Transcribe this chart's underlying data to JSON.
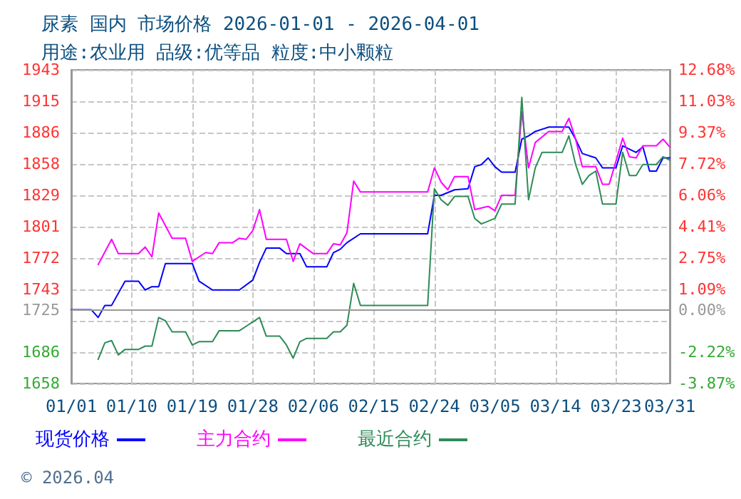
{
  "chart_data": {
    "type": "line",
    "title": "尿素 国内 市场价格 2026-01-01 - 2026-04-01",
    "subtitle": "用途:农业用 品级:优等品 粒度:中小颗粒",
    "annotations": [
      "© 2026.04"
    ],
    "xlim": [
      "2026-01-01",
      "2026-03-31"
    ],
    "xticks": [
      {
        "value": "2026-01-01",
        "label": "01/01"
      },
      {
        "value": "2026-01-10",
        "label": "01/10"
      },
      {
        "value": "2026-01-19",
        "label": "01/19"
      },
      {
        "value": "2026-01-28",
        "label": "01/28"
      },
      {
        "value": "2026-02-06",
        "label": "02/06"
      },
      {
        "value": "2026-02-15",
        "label": "02/15"
      },
      {
        "value": "2026-02-24",
        "label": "02/24"
      },
      {
        "value": "2026-03-05",
        "label": "03/05"
      },
      {
        "value": "2026-03-14",
        "label": "03/14"
      },
      {
        "value": "2026-03-23",
        "label": "03/23"
      },
      {
        "value": "2026-03-31",
        "label": "03/31"
      }
    ],
    "ylim": [
      1658,
      1943
    ],
    "yticks": [
      1658,
      {
        "value": 1686.5,
        "label": "1686"
      },
      {
        "value": 1715,
        "label": null
      },
      {
        "value": 1743.5,
        "label": "1743"
      },
      1772,
      {
        "value": 1800.5,
        "label": "1801"
      },
      1829,
      {
        "value": 1857.5,
        "label": "1858"
      },
      1886,
      {
        "value": 1914.5,
        "label": "1915"
      },
      1943
    ],
    "y2lim": [
      -3.87,
      12.68
    ],
    "y2ticks": [
      {
        "value": -3.87,
        "label": "-3.87%"
      },
      {
        "value": -2.22,
        "label": "-2.22%"
      },
      {
        "value": 0,
        "label": "0.00%"
      },
      {
        "value": 1.09,
        "label": "1.09%"
      },
      {
        "value": 2.75,
        "label": "2.75%"
      },
      {
        "value": 4.41,
        "label": "4.41%"
      },
      {
        "value": 6.06,
        "label": "6.06%"
      },
      {
        "value": 7.72,
        "label": "7.72%"
      },
      {
        "value": 9.37,
        "label": "9.37%"
      },
      {
        "value": 11.03,
        "label": "11.03%"
      },
      {
        "value": 12.68,
        "label": "12.68%"
      }
    ],
    "ref_lines": [
      {
        "axis": "y",
        "value": 1725,
        "label": "1725",
        "color": "#999999"
      }
    ],
    "grid": true,
    "legend": "bottom left",
    "marker": "none",
    "line_style": "solid",
    "series": [
      {
        "name": "现货价格",
        "color": "#0000ff",
        "x": [
          "2026-01-01",
          "2026-01-04",
          "2026-01-05",
          "2026-01-06",
          "2026-01-07",
          "2026-01-09",
          "2026-01-11",
          "2026-01-12",
          "2026-01-13",
          "2026-01-14",
          "2026-01-15",
          "2026-01-19",
          "2026-01-20",
          "2026-01-22",
          "2026-01-26",
          "2026-01-28",
          "2026-01-29",
          "2026-01-30",
          "2026-02-01",
          "2026-02-02",
          "2026-02-04",
          "2026-02-05",
          "2026-02-08",
          "2026-02-09",
          "2026-02-10",
          "2026-02-11",
          "2026-02-13",
          "2026-02-23",
          "2026-02-24",
          "2026-02-25",
          "2026-02-27",
          "2026-03-01",
          "2026-03-02",
          "2026-03-03",
          "2026-03-04",
          "2026-03-05",
          "2026-03-06",
          "2026-03-08",
          "2026-03-09",
          "2026-03-10",
          "2026-03-11",
          "2026-03-13",
          "2026-03-16",
          "2026-03-17",
          "2026-03-18",
          "2026-03-20",
          "2026-03-21",
          "2026-03-23",
          "2026-03-24",
          "2026-03-26",
          "2026-03-27",
          "2026-03-28",
          "2026-03-29",
          "2026-03-30",
          "2026-03-31"
        ],
        "values": [
          1725,
          1725,
          1718,
          1729,
          1729,
          1751,
          1751,
          1743,
          1746,
          1746,
          1767,
          1767,
          1751,
          1743,
          1743,
          1752,
          1768,
          1781,
          1781,
          1776,
          1776,
          1764,
          1764,
          1777,
          1780,
          1786,
          1794,
          1794,
          1829,
          1829,
          1834,
          1835,
          1855,
          1857,
          1863,
          1855,
          1850,
          1850,
          1880,
          1883,
          1887,
          1891,
          1891,
          1880,
          1867,
          1863,
          1854,
          1854,
          1874,
          1868,
          1873,
          1851,
          1851,
          1863,
          1863
        ]
      },
      {
        "name": "主力合约",
        "color": "#ff00ff",
        "x": [
          "2026-01-05",
          "2026-01-07",
          "2026-01-08",
          "2026-01-11",
          "2026-01-12",
          "2026-01-13",
          "2026-01-14",
          "2026-01-16",
          "2026-01-18",
          "2026-01-19",
          "2026-01-21",
          "2026-01-22",
          "2026-01-23",
          "2026-01-25",
          "2026-01-26",
          "2026-01-27",
          "2026-01-28",
          "2026-01-29",
          "2026-01-30",
          "2026-02-02",
          "2026-02-03",
          "2026-02-04",
          "2026-02-06",
          "2026-02-08",
          "2026-02-09",
          "2026-02-10",
          "2026-02-11",
          "2026-02-12",
          "2026-02-13",
          "2026-02-23",
          "2026-02-24",
          "2026-02-25",
          "2026-02-26",
          "2026-02-27",
          "2026-03-01",
          "2026-03-02",
          "2026-03-04",
          "2026-03-05",
          "2026-03-06",
          "2026-03-08",
          "2026-03-09",
          "2026-03-10",
          "2026-03-11",
          "2026-03-13",
          "2026-03-15",
          "2026-03-16",
          "2026-03-17",
          "2026-03-18",
          "2026-03-20",
          "2026-03-21",
          "2026-03-22",
          "2026-03-24",
          "2026-03-25",
          "2026-03-26",
          "2026-03-27",
          "2026-03-29",
          "2026-03-30",
          "2026-03-31"
        ],
        "values": [
          1766,
          1789,
          1776,
          1776,
          1782,
          1773,
          1813,
          1790,
          1790,
          1769,
          1777,
          1776,
          1786,
          1786,
          1790,
          1789,
          1797,
          1816,
          1789,
          1789,
          1769,
          1785,
          1776,
          1776,
          1785,
          1784,
          1795,
          1842,
          1832,
          1832,
          1854,
          1841,
          1834,
          1846,
          1846,
          1816,
          1819,
          1815,
          1829,
          1829,
          1905,
          1854,
          1877,
          1887,
          1887,
          1899,
          1880,
          1855,
          1855,
          1839,
          1839,
          1881,
          1864,
          1863,
          1874,
          1874,
          1880,
          1873
        ]
      },
      {
        "name": "最近合约",
        "color": "#2e8b57",
        "x": [
          "2026-01-05",
          "2026-01-06",
          "2026-01-07",
          "2026-01-08",
          "2026-01-09",
          "2026-01-11",
          "2026-01-12",
          "2026-01-13",
          "2026-01-14",
          "2026-01-15",
          "2026-01-16",
          "2026-01-18",
          "2026-01-19",
          "2026-01-20",
          "2026-01-22",
          "2026-01-23",
          "2026-01-26",
          "2026-01-27",
          "2026-01-29",
          "2026-01-30",
          "2026-02-01",
          "2026-02-02",
          "2026-02-03",
          "2026-02-04",
          "2026-02-05",
          "2026-02-08",
          "2026-02-09",
          "2026-02-10",
          "2026-02-11",
          "2026-02-12",
          "2026-02-13",
          "2026-02-23",
          "2026-02-24",
          "2026-02-25",
          "2026-02-26",
          "2026-02-27",
          "2026-03-01",
          "2026-03-02",
          "2026-03-03",
          "2026-03-05",
          "2026-03-06",
          "2026-03-08",
          "2026-03-09",
          "2026-03-10",
          "2026-03-11",
          "2026-03-12",
          "2026-03-15",
          "2026-03-16",
          "2026-03-17",
          "2026-03-18",
          "2026-03-19",
          "2026-03-20",
          "2026-03-21",
          "2026-03-23",
          "2026-03-24",
          "2026-03-25",
          "2026-03-26",
          "2026-03-27",
          "2026-03-29",
          "2026-03-30",
          "2026-03-31"
        ],
        "values": [
          1680,
          1695,
          1697,
          1684,
          1689,
          1689,
          1692,
          1692,
          1718,
          1715,
          1705,
          1705,
          1693,
          1696,
          1696,
          1706,
          1706,
          1710,
          1718,
          1701,
          1701,
          1693,
          1681,
          1696,
          1699,
          1699,
          1705,
          1705,
          1711,
          1749,
          1729,
          1729,
          1835,
          1825,
          1820,
          1828,
          1828,
          1808,
          1803,
          1808,
          1821,
          1821,
          1918,
          1825,
          1854,
          1868,
          1868,
          1883,
          1857,
          1839,
          1847,
          1851,
          1821,
          1821,
          1868,
          1847,
          1847,
          1857,
          1857,
          1864,
          1861
        ]
      }
    ]
  }
}
